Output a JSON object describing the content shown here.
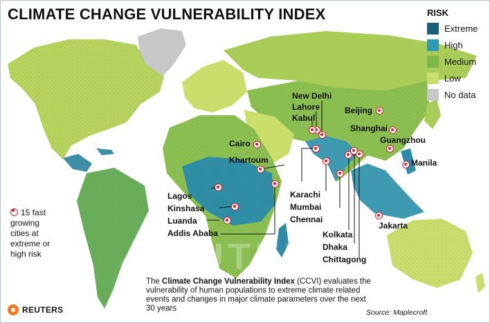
{
  "title": "CLIMATE CHANGE VULNERABILITY INDEX",
  "legend": {
    "heading": "RISK",
    "items": [
      {
        "label": "Extreme",
        "color": "#1a5f7a"
      },
      {
        "label": "High",
        "color": "#2e9bb4"
      },
      {
        "label": "Medium",
        "color": "#7fb84a"
      },
      {
        "label": "Low",
        "color": "#cbdd6b"
      },
      {
        "label": "No data",
        "color": "#c7c7c7"
      }
    ]
  },
  "cities": [
    {
      "name": "New Delhi"
    },
    {
      "name": "Lahore"
    },
    {
      "name": "Kabul"
    },
    {
      "name": "Beijing"
    },
    {
      "name": "Shanghai"
    },
    {
      "name": "Guangzhou"
    },
    {
      "name": "Manila"
    },
    {
      "name": "Cairo"
    },
    {
      "name": "Khartoum"
    },
    {
      "name": "Lagos"
    },
    {
      "name": "Kinshasa"
    },
    {
      "name": "Luanda"
    },
    {
      "name": "Addis Ababa"
    },
    {
      "name": "Karachi"
    },
    {
      "name": "Mumbai"
    },
    {
      "name": "Chennai"
    },
    {
      "name": "Kolkata"
    },
    {
      "name": "Dhaka"
    },
    {
      "name": "Chittagong"
    },
    {
      "name": "Jakarta"
    }
  ],
  "note": "15 fast growing cities at extreme or high risk",
  "description": {
    "prefix": "The ",
    "bold": "Climate Change Vulnerability Index",
    "suffix": " (CCVI) evaluates the vulnerability of human populations to extreme climate related events and changes in major climate parameters over the next 30 years"
  },
  "source": "Source: Maplecroft",
  "watermark": "REUTERS",
  "brand": "REUTERS"
}
